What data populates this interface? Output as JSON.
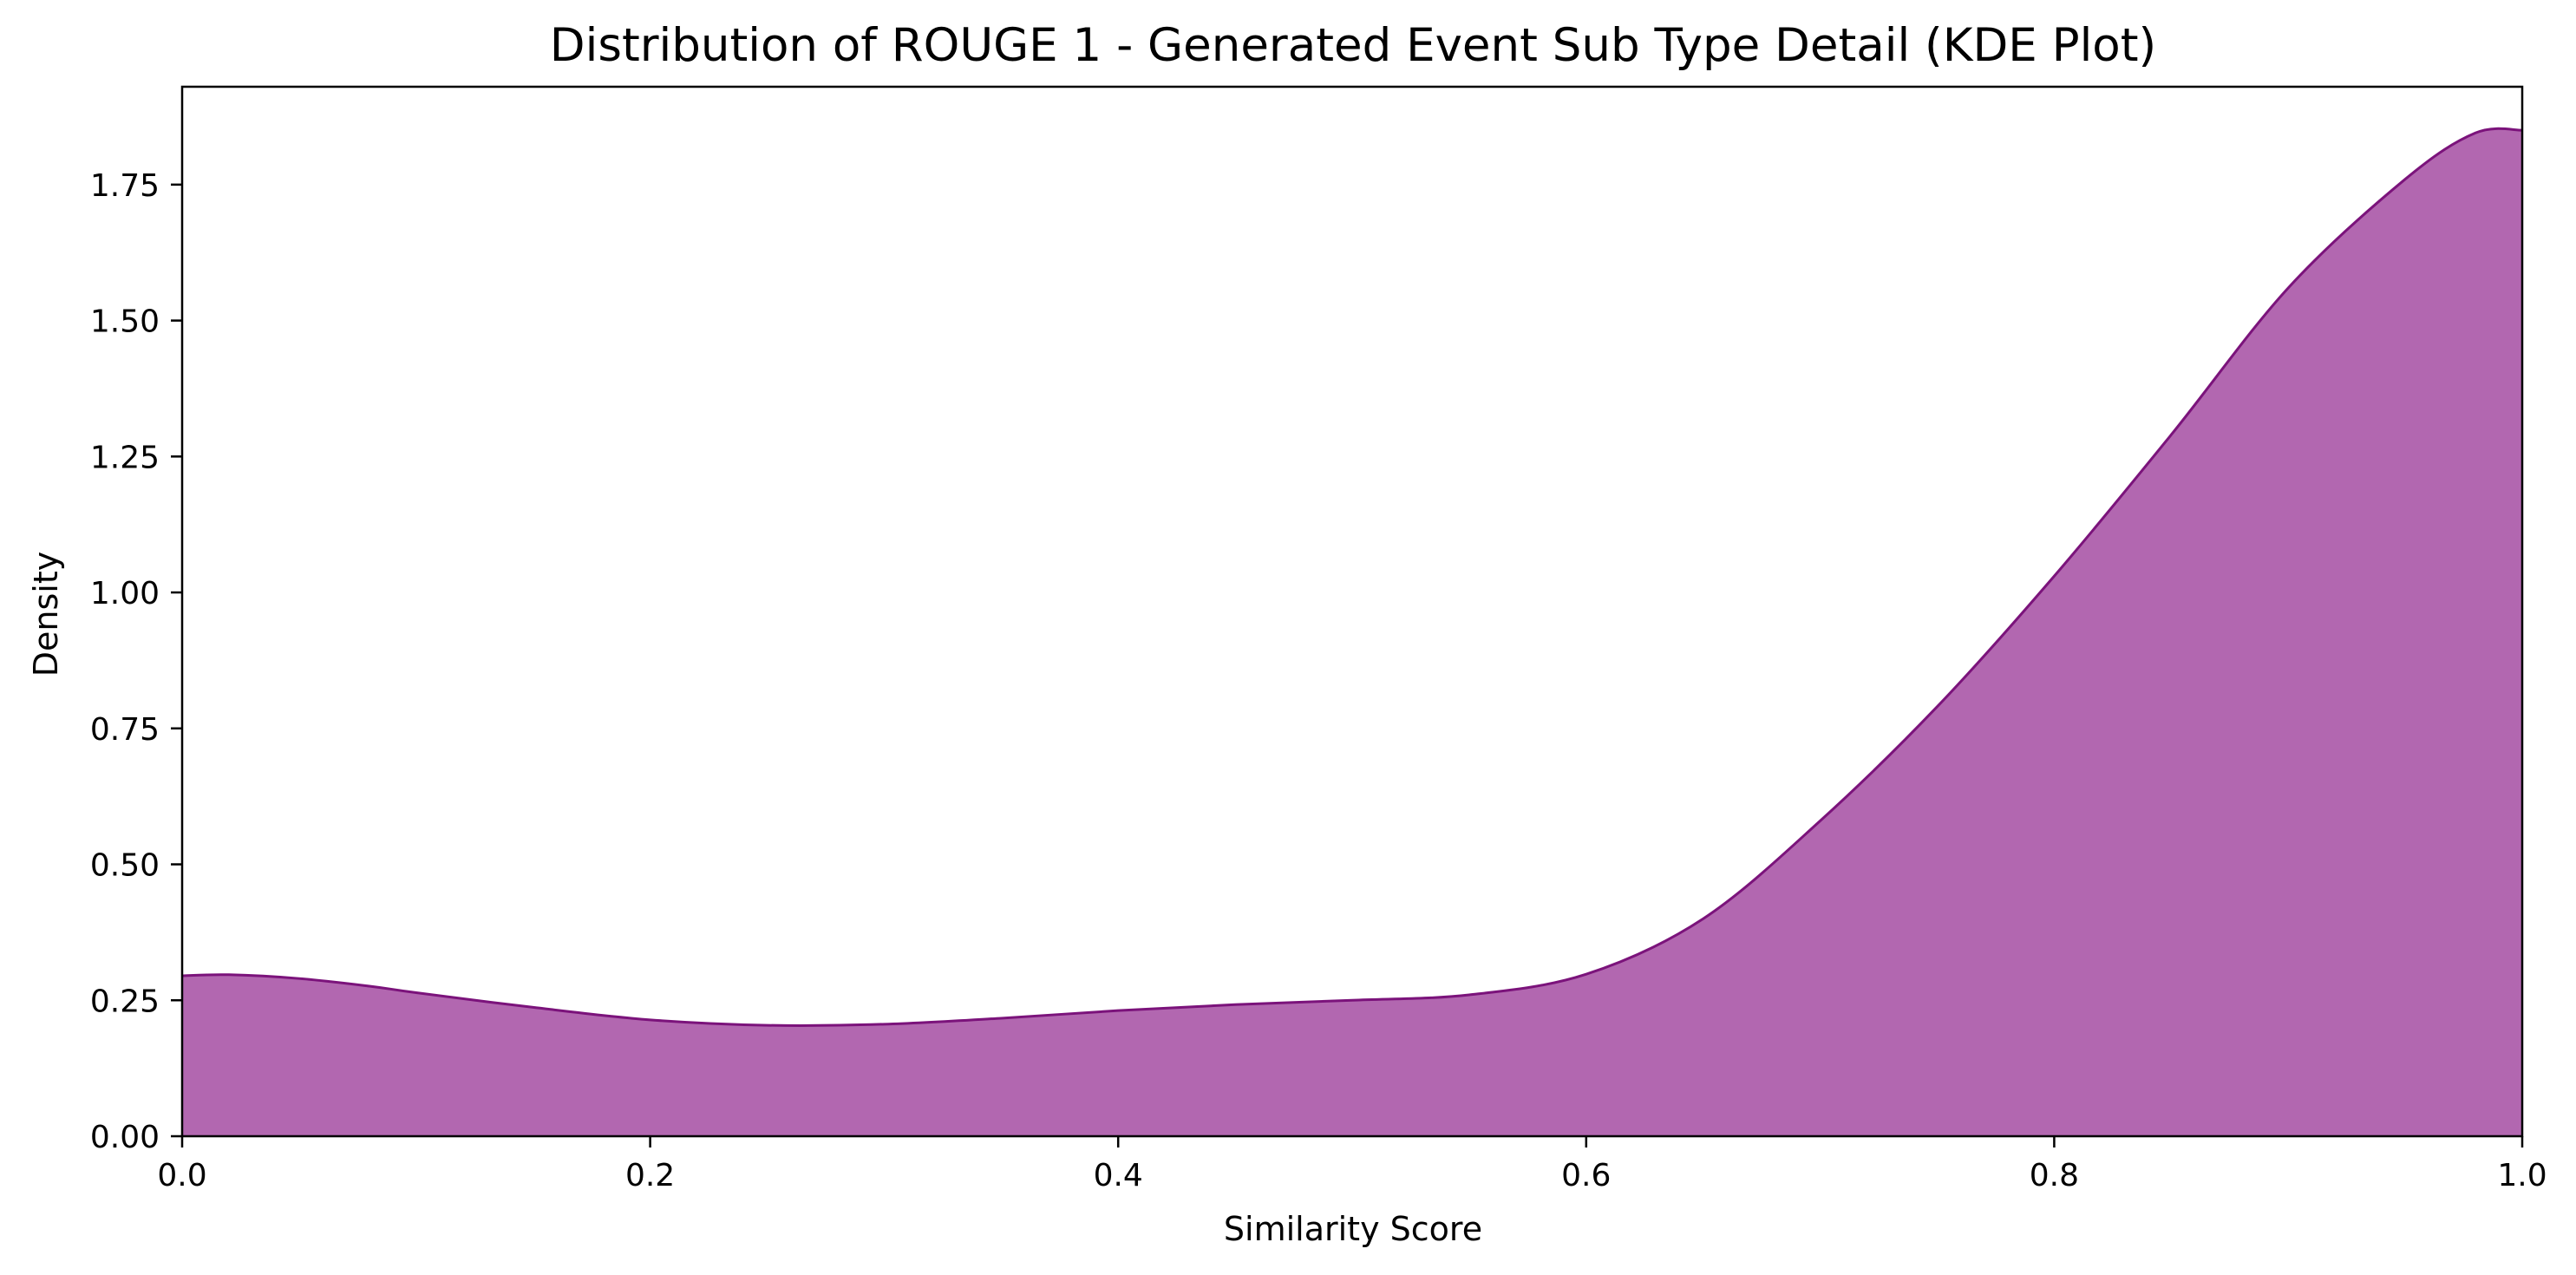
{
  "chart_data": {
    "type": "area",
    "title": "Distribution of ROUGE 1 - Generated Event Sub Type Detail (KDE Plot)",
    "xlabel": "Similarity Score",
    "ylabel": "Density",
    "xlim": [
      0.0,
      1.0
    ],
    "ylim": [
      0.0,
      1.93
    ],
    "x_ticks": [
      {
        "value": 0.0,
        "label": "0.0"
      },
      {
        "value": 0.2,
        "label": "0.2"
      },
      {
        "value": 0.4,
        "label": "0.4"
      },
      {
        "value": 0.6,
        "label": "0.6"
      },
      {
        "value": 0.8,
        "label": "0.8"
      },
      {
        "value": 1.0,
        "label": "1.0"
      }
    ],
    "y_ticks": [
      {
        "value": 0.0,
        "label": "0.00"
      },
      {
        "value": 0.25,
        "label": "0.25"
      },
      {
        "value": 0.5,
        "label": "0.50"
      },
      {
        "value": 0.75,
        "label": "0.75"
      },
      {
        "value": 1.0,
        "label": "1.00"
      },
      {
        "value": 1.25,
        "label": "1.25"
      },
      {
        "value": 1.5,
        "label": "1.50"
      },
      {
        "value": 1.75,
        "label": "1.75"
      }
    ],
    "grid": false,
    "fill_color": "#b267b0",
    "line_color": "#7b137b",
    "series": [
      {
        "x": [
          0.0,
          0.02,
          0.05,
          0.08,
          0.1,
          0.15,
          0.2,
          0.25,
          0.3,
          0.35,
          0.4,
          0.45,
          0.5,
          0.55,
          0.6,
          0.65,
          0.7,
          0.75,
          0.8,
          0.85,
          0.9,
          0.95,
          0.98,
          1.0
        ],
        "y": [
          0.295,
          0.297,
          0.29,
          0.276,
          0.264,
          0.237,
          0.214,
          0.204,
          0.206,
          0.217,
          0.231,
          0.242,
          0.25,
          0.26,
          0.298,
          0.4,
          0.58,
          0.79,
          1.03,
          1.29,
          1.56,
          1.76,
          1.845,
          1.85
        ]
      }
    ]
  }
}
